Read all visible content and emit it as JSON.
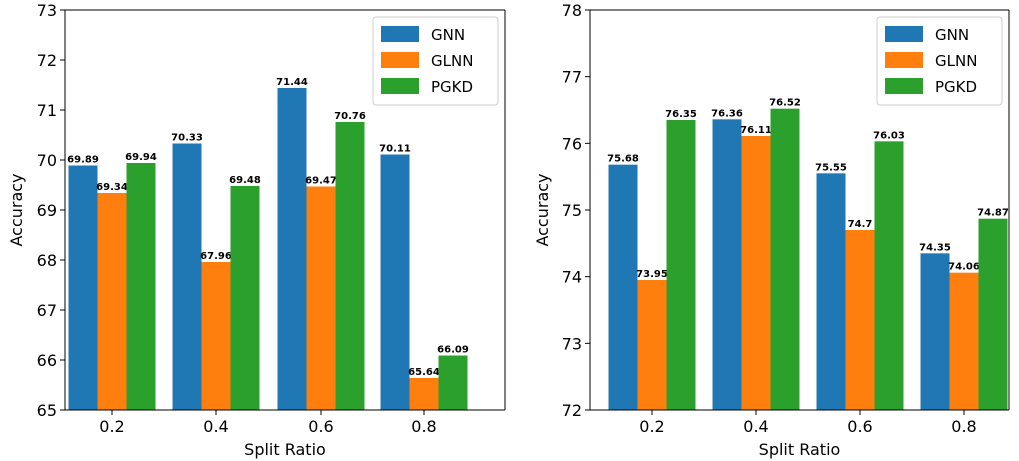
{
  "chart_data": [
    {
      "type": "bar",
      "xlabel": "Split Ratio",
      "ylabel": "Accuracy",
      "ylim": [
        65,
        73
      ],
      "yticks": [
        65,
        66,
        67,
        68,
        69,
        70,
        71,
        72,
        73
      ],
      "categories": [
        "0.2",
        "0.4",
        "0.6",
        "0.8"
      ],
      "legend_position": "top-right",
      "series": [
        {
          "name": "GNN",
          "color": "#1f77b4",
          "values": [
            69.89,
            70.33,
            71.44,
            70.11
          ],
          "labels": [
            "69.89",
            "70.33",
            "71.44",
            "70.11"
          ]
        },
        {
          "name": "GLNN",
          "color": "#ff7f0e",
          "values": [
            69.34,
            67.96,
            69.47,
            65.64
          ],
          "labels": [
            "69.34",
            "67.96",
            "69.47",
            "65.64"
          ]
        },
        {
          "name": "PGKD",
          "color": "#2ca02c",
          "values": [
            69.94,
            69.48,
            70.76,
            66.09
          ],
          "labels": [
            "69.94",
            "69.48",
            "70.76",
            "66.09"
          ]
        }
      ]
    },
    {
      "type": "bar",
      "xlabel": "Split Ratio",
      "ylabel": "Accuracy",
      "ylim": [
        72,
        78
      ],
      "yticks": [
        72,
        73,
        74,
        75,
        76,
        77,
        78
      ],
      "categories": [
        "0.2",
        "0.4",
        "0.6",
        "0.8"
      ],
      "legend_position": "top-right",
      "series": [
        {
          "name": "GNN",
          "color": "#1f77b4",
          "values": [
            75.68,
            76.36,
            75.55,
            74.35
          ],
          "labels": [
            "75.68",
            "76.36",
            "75.55",
            "74.35"
          ]
        },
        {
          "name": "GLNN",
          "color": "#ff7f0e",
          "values": [
            73.95,
            76.11,
            74.7,
            74.06
          ],
          "labels": [
            "73.95",
            "76.11",
            "74.7",
            "74.06"
          ]
        },
        {
          "name": "PGKD",
          "color": "#2ca02c",
          "values": [
            76.35,
            76.52,
            76.03,
            74.87
          ],
          "labels": [
            "76.35",
            "76.52",
            "76.03",
            "74.87"
          ]
        }
      ]
    }
  ]
}
